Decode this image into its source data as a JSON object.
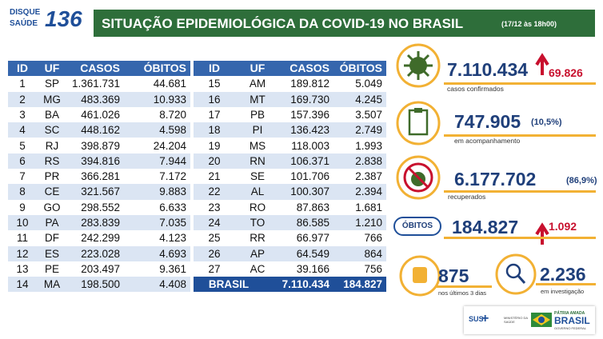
{
  "header": {
    "logo_line1": "DISQUE",
    "logo_line2": "SAÚDE",
    "logo_number": "136",
    "title": "SITUAÇÃO EPIDEMIOLÓGICA DA COVID-19 NO BRASIL",
    "date": "(17/12 às 18h00)"
  },
  "table_left": {
    "headers": [
      "ID",
      "UF",
      "CASOS",
      "ÓBITOS"
    ],
    "rows": [
      [
        "1",
        "SP",
        "1.361.731",
        "44.681"
      ],
      [
        "2",
        "MG",
        "483.369",
        "10.933"
      ],
      [
        "3",
        "BA",
        "461.026",
        "8.720"
      ],
      [
        "4",
        "SC",
        "448.162",
        "4.598"
      ],
      [
        "5",
        "RJ",
        "398.879",
        "24.204"
      ],
      [
        "6",
        "RS",
        "394.816",
        "7.944"
      ],
      [
        "7",
        "PR",
        "366.281",
        "7.172"
      ],
      [
        "8",
        "CE",
        "321.567",
        "9.883"
      ],
      [
        "9",
        "GO",
        "298.552",
        "6.633"
      ],
      [
        "10",
        "PA",
        "283.839",
        "7.035"
      ],
      [
        "11",
        "DF",
        "242.299",
        "4.123"
      ],
      [
        "12",
        "ES",
        "223.028",
        "4.693"
      ],
      [
        "13",
        "PE",
        "203.497",
        "9.361"
      ],
      [
        "14",
        "MA",
        "198.500",
        "4.408"
      ]
    ]
  },
  "table_right": {
    "headers": [
      "ID",
      "UF",
      "CASOS",
      "ÓBITOS"
    ],
    "rows": [
      [
        "15",
        "AM",
        "189.812",
        "5.049"
      ],
      [
        "16",
        "MT",
        "169.730",
        "4.245"
      ],
      [
        "17",
        "PB",
        "157.396",
        "3.507"
      ],
      [
        "18",
        "PI",
        "136.423",
        "2.749"
      ],
      [
        "19",
        "MS",
        "118.003",
        "1.993"
      ],
      [
        "20",
        "RN",
        "106.371",
        "2.838"
      ],
      [
        "21",
        "SE",
        "101.706",
        "2.387"
      ],
      [
        "22",
        "AL",
        "100.307",
        "2.394"
      ],
      [
        "23",
        "RO",
        "87.863",
        "1.681"
      ],
      [
        "24",
        "TO",
        "86.585",
        "1.210"
      ],
      [
        "25",
        "RR",
        "66.977",
        "766"
      ],
      [
        "26",
        "AP",
        "64.549",
        "864"
      ],
      [
        "27",
        "AC",
        "39.166",
        "756"
      ]
    ],
    "total": [
      "BRASIL",
      "7.110.434",
      "184.827"
    ]
  },
  "stats": {
    "cases": {
      "value": "7.110.434",
      "increase": "69.826",
      "label": "casos confirmados"
    },
    "monitoring": {
      "value": "747.905",
      "percent": "(10,5%)",
      "label": "em acompanhamento"
    },
    "recovered": {
      "value": "6.177.702",
      "percent": "(86,9%)",
      "label": "recuperados"
    },
    "deaths": {
      "badge": "ÓBITOS",
      "value": "184.827",
      "increase": "1.092"
    },
    "last_days": {
      "value": "875",
      "label": "nos últimos 3 dias"
    },
    "investigation": {
      "value": "2.236",
      "label": "em investigação"
    }
  },
  "footer": {
    "sus": "SUS",
    "ministry": "MINISTÉRIO DA SAÚDE",
    "motto": "PÁTRIA AMADA",
    "country": "BRASIL",
    "government": "GOVERNO FEDERAL"
  }
}
